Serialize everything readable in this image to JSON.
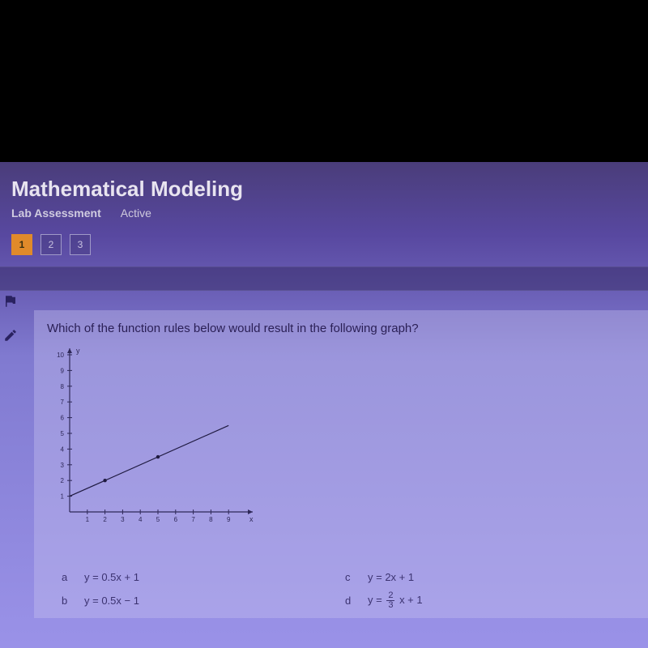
{
  "header": {
    "title": "Mathematical Modeling",
    "subtitle": "Lab Assessment",
    "status": "Active",
    "title_color": "#e8e4f0",
    "bg_gradient": [
      "#4a3d7a",
      "#9a92e8"
    ]
  },
  "nav": {
    "items": [
      "1",
      "2",
      "3"
    ],
    "active_index": 0,
    "active_bg": "#e08a2a",
    "box_border": "#a09ac8"
  },
  "question": {
    "prompt": "Which of the function rules below would result in the following graph?",
    "text_color": "#2a1f55"
  },
  "graph": {
    "type": "line",
    "xlim": [
      0,
      10
    ],
    "ylim": [
      0,
      10
    ],
    "xticks": [
      1,
      2,
      3,
      4,
      5,
      6,
      7,
      8,
      9
    ],
    "yticks": [
      1,
      2,
      3,
      4,
      5,
      6,
      7,
      8,
      9,
      10
    ],
    "xlabel": "x",
    "ylabel": "y",
    "axis_color": "#2e2858",
    "tick_color": "#2e2858",
    "tick_fontsize": 8,
    "line": {
      "x1": 0,
      "y1": 1,
      "x2": 9,
      "y2": 5.5,
      "color": "#1f1a40",
      "width": 1.2
    },
    "points": [
      {
        "x": 2,
        "y": 2,
        "r": 2.2,
        "fill": "#1f1a40"
      },
      {
        "x": 5,
        "y": 3.5,
        "r": 2.2,
        "fill": "#1f1a40"
      }
    ],
    "arrows": true,
    "background": "transparent"
  },
  "answers": {
    "a": {
      "letter": "a",
      "formula": "y = 0.5x + 1"
    },
    "b": {
      "letter": "b",
      "formula": "y = 0.5x − 1"
    },
    "c": {
      "letter": "c",
      "formula": "y = 2x + 1"
    },
    "d": {
      "letter": "d",
      "prefix": "y = ",
      "frac_num": "2",
      "frac_den": "3",
      "suffix": " x + 1"
    },
    "text_color": "#3b3270"
  }
}
